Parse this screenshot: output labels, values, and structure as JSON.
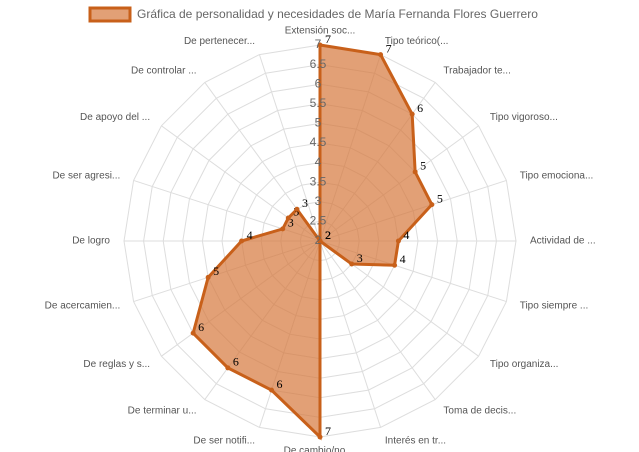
{
  "chart_data": {
    "type": "radar",
    "categories": [
      "Extensión soc...",
      "Tipo teórico(...",
      "Trabajador te...",
      "Tipo vigoroso...",
      "Tipo emociona...",
      "Actividad de ...",
      "Tipo siempre ...",
      "Tipo organiza...",
      "Toma de decis...",
      "Interés en tr...",
      "De cambio/no ...",
      "De ser notifi...",
      "De terminar u...",
      "De reglas y s...",
      "De acercamien...",
      "De logro",
      "De ser agresi...",
      "De apoyo del ...",
      "De controlar ...",
      "De pertenecer..."
    ],
    "series": [
      {
        "name": "Gráfica de personalidad y necesidades de María Fernanda Flores Guerrero",
        "color": "#c8601a",
        "fill": "rgba(214,120,60,0.7)",
        "values": [
          7,
          7,
          6,
          5,
          5,
          4,
          4,
          3,
          2,
          2,
          7,
          6,
          6,
          6,
          5,
          4,
          3,
          3,
          3,
          2
        ]
      }
    ],
    "rlim": [
      2,
      7
    ],
    "rticks": [
      2,
      2.5,
      3,
      3.5,
      4,
      4.5,
      5,
      5.5,
      6,
      6.5,
      7
    ],
    "grid": true,
    "legend": "top"
  }
}
